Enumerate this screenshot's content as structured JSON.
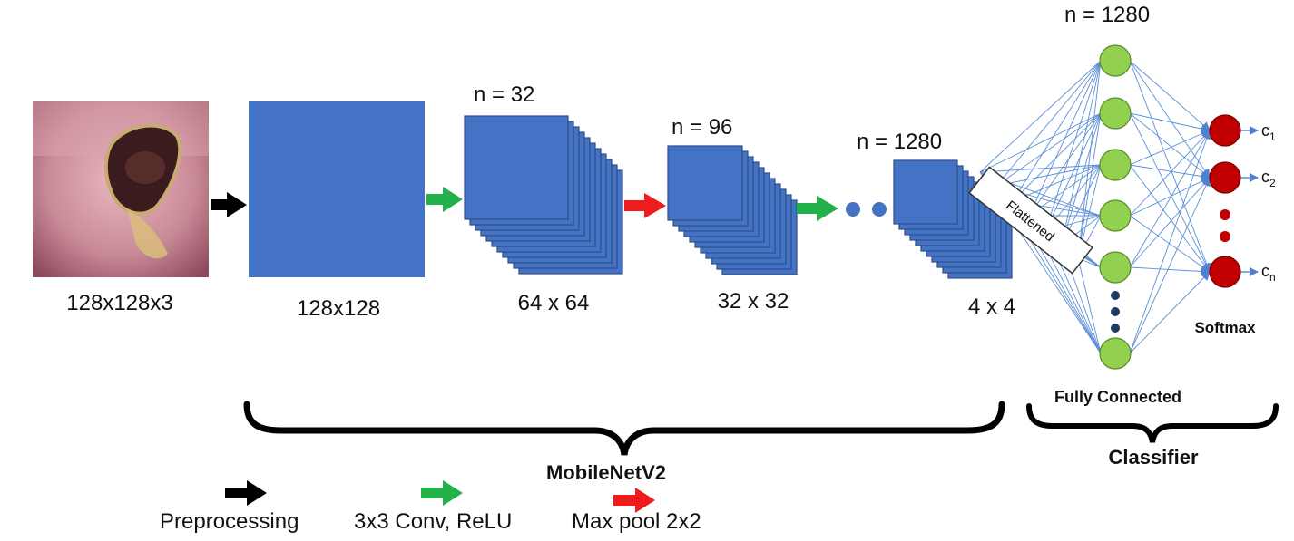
{
  "input": {
    "size_label": "128x128x3"
  },
  "mobilenet": {
    "label": "MobileNetV2",
    "stages": [
      {
        "size_label": "128x128"
      },
      {
        "n_label": "n = 32",
        "size_label": "64 x 64"
      },
      {
        "n_label": "n = 96",
        "size_label": "32 x 32"
      },
      {
        "n_label": "n = 1280",
        "size_label": "4 x 4"
      }
    ]
  },
  "flatten_label": "Flattened",
  "classifier": {
    "label": "Classifier",
    "fc_n_label": "n = 1280",
    "fc_label": "Fully Connected",
    "softmax_label": "Softmax",
    "outputs": [
      {
        "letter": "c",
        "sub": "1"
      },
      {
        "letter": "c",
        "sub": "2"
      },
      {
        "letter": "c",
        "sub": "n"
      }
    ]
  },
  "legend": {
    "items": [
      {
        "label": "Preprocessing",
        "color": "#000000"
      },
      {
        "label": "3x3 Conv, ReLU",
        "color": "#22b04b"
      },
      {
        "label": "Max pool 2x2",
        "color": "#ee1c1c"
      }
    ]
  },
  "colors": {
    "feature_map": "#4472c4",
    "feature_map_stroke": "#2f4f8a",
    "fc_node": "#92d050",
    "fc_node_stroke": "#5a8a2a",
    "softmax_node": "#c00000",
    "connection": "#5b8fd6",
    "dot": "#1f3864"
  }
}
